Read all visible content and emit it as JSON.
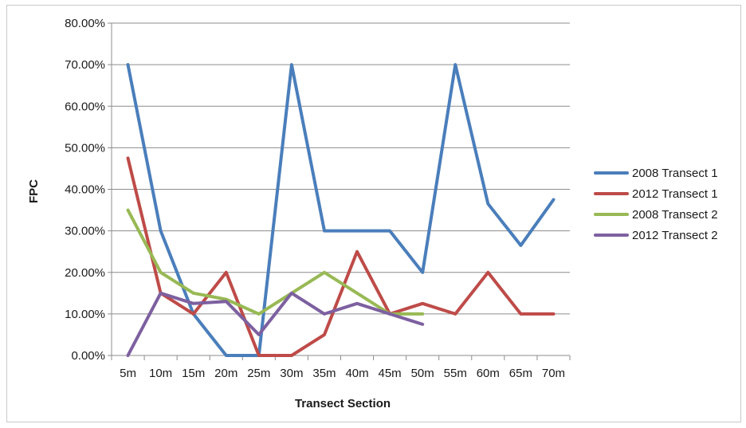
{
  "chart_data": {
    "type": "line",
    "title": "",
    "xlabel": "Transect Section",
    "ylabel": "FPC",
    "ylim": [
      0,
      0.8
    ],
    "y_ticks": [
      "0.00%",
      "10.00%",
      "20.00%",
      "30.00%",
      "40.00%",
      "50.00%",
      "60.00%",
      "70.00%",
      "80.00%"
    ],
    "y_tick_values": [
      0,
      0.1,
      0.2,
      0.3,
      0.4,
      0.5,
      0.6,
      0.7,
      0.8
    ],
    "categories": [
      "5m",
      "10m",
      "15m",
      "20m",
      "25m",
      "30m",
      "35m",
      "40m",
      "45m",
      "50m",
      "55m",
      "60m",
      "65m",
      "70m"
    ],
    "grid": true,
    "legend_position": "right",
    "series": [
      {
        "name": "2008 Transect 1",
        "color": "#4a7ebb",
        "values": [
          0.7,
          0.3,
          0.1,
          0.0,
          0.0,
          0.7,
          0.3,
          0.3,
          0.3,
          0.2,
          0.7,
          0.365,
          0.265,
          0.375
        ]
      },
      {
        "name": "2012 Transect 1",
        "color": "#be4b48",
        "values": [
          0.475,
          0.15,
          0.1,
          0.2,
          0.0,
          0.0,
          0.05,
          0.25,
          0.1,
          0.125,
          0.1,
          0.2,
          0.1,
          0.1
        ]
      },
      {
        "name": "2008 Transect 2",
        "color": "#98b954",
        "values": [
          0.35,
          0.2,
          0.15,
          0.135,
          0.1,
          0.15,
          0.2,
          0.15,
          0.1,
          0.1,
          null,
          null,
          null,
          null
        ]
      },
      {
        "name": "2012 Transect 2",
        "color": "#7d60a0",
        "values": [
          0.0,
          0.15,
          0.125,
          0.13,
          0.05,
          0.15,
          0.1,
          0.125,
          0.1,
          0.075,
          null,
          null,
          null,
          null
        ]
      }
    ]
  }
}
